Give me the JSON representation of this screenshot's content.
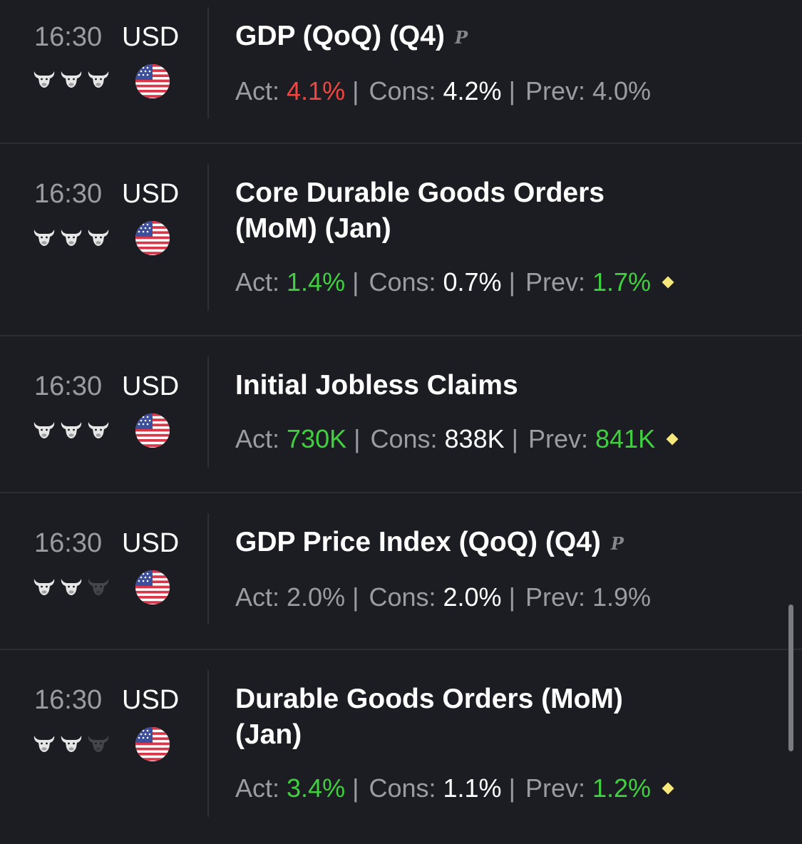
{
  "events": [
    {
      "time": "16:30",
      "currency": "USD",
      "importance": 3,
      "title": "GDP (QoQ) (Q4)",
      "preliminary": true,
      "preliminary_mark": "P",
      "act_label": "Act:",
      "act": "4.1%",
      "act_color": "red",
      "cons_label": "Cons:",
      "cons": "4.2%",
      "prev_label": "Prev:",
      "prev": "4.0%",
      "prev_color": "grey",
      "revised": false
    },
    {
      "time": "16:30",
      "currency": "USD",
      "importance": 3,
      "title": "Core Durable Goods Orders (MoM) (Jan)",
      "preliminary": false,
      "act_label": "Act:",
      "act": "1.4%",
      "act_color": "green",
      "cons_label": "Cons:",
      "cons": "0.7%",
      "prev_label": "Prev:",
      "prev": "1.7%",
      "prev_color": "green",
      "revised": true
    },
    {
      "time": "16:30",
      "currency": "USD",
      "importance": 3,
      "title": "Initial Jobless Claims",
      "preliminary": false,
      "act_label": "Act:",
      "act": "730K",
      "act_color": "green",
      "cons_label": "Cons:",
      "cons": "838K",
      "prev_label": "Prev:",
      "prev": "841K",
      "prev_color": "green",
      "revised": true
    },
    {
      "time": "16:30",
      "currency": "USD",
      "importance": 2,
      "title": "GDP Price Index (QoQ) (Q4)",
      "preliminary": true,
      "preliminary_mark": "P",
      "act_label": "Act:",
      "act": "2.0%",
      "act_color": "grey",
      "cons_label": "Cons:",
      "cons": "2.0%",
      "prev_label": "Prev:",
      "prev": "1.9%",
      "prev_color": "grey",
      "revised": false
    },
    {
      "time": "16:30",
      "currency": "USD",
      "importance": 2,
      "title": "Durable Goods Orders (MoM) (Jan)",
      "preliminary": false,
      "act_label": "Act:",
      "act": "3.4%",
      "act_color": "green",
      "cons_label": "Cons:",
      "cons": "1.1%",
      "prev_label": "Prev:",
      "prev": "1.2%",
      "prev_color": "green",
      "revised": true
    }
  ],
  "icons": {
    "importance": "bull-icon",
    "flag": "us-flag-icon",
    "preliminary": "preliminary-icon",
    "revised": "revised-diamond-icon"
  },
  "colors": {
    "background": "#1c1d22",
    "red": "#f0463f",
    "green": "#3fcf3f",
    "grey": "#9b9ca1",
    "bull_active": "#e6e6e6",
    "bull_inactive": "#45464b",
    "revised": "#f6e87a"
  }
}
